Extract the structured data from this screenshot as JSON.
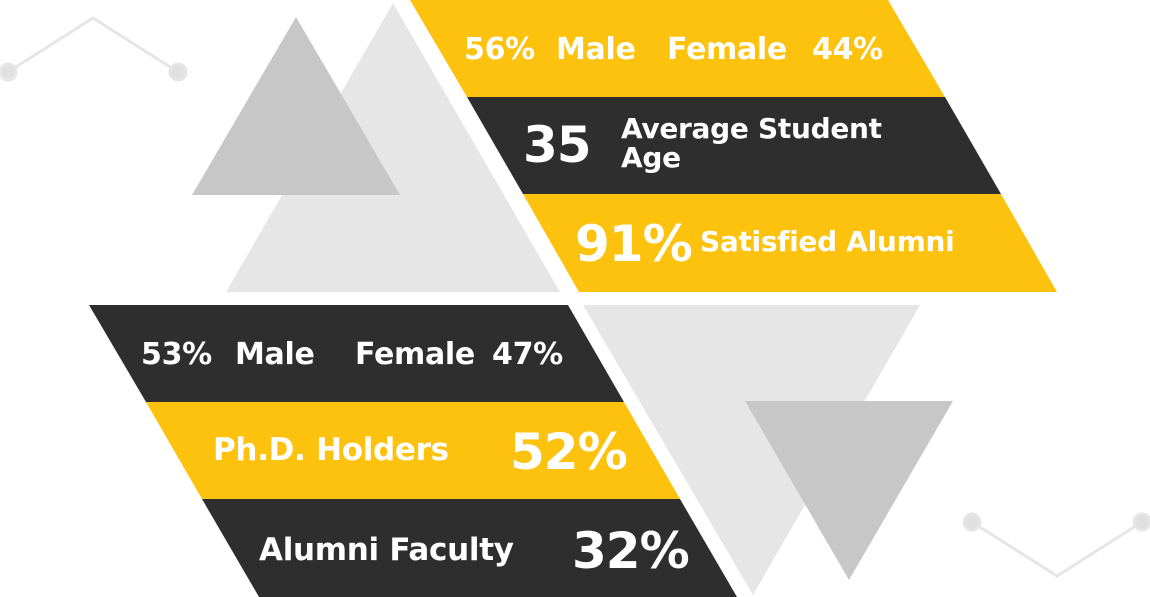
{
  "colors": {
    "yellow": "#FDC20E",
    "dark": "#2E2E2E",
    "triangle_light": "#E6E6E6",
    "triangle_mid": "#C7C7C7",
    "line_decor": "#E4E4E4"
  },
  "students": {
    "gender": {
      "male_pct": "56%",
      "male_label": "Male",
      "female_label": "Female",
      "female_pct": "44%"
    },
    "age": {
      "value": "35",
      "label_line1": "Average Student",
      "label_line2": "Age"
    },
    "alumni": {
      "value": "91%",
      "label": "Satisfied Alumni"
    }
  },
  "faculty": {
    "gender": {
      "male_pct": "53%",
      "male_label": "Male",
      "female_label": "Female",
      "female_pct": "47%"
    },
    "phd": {
      "label": "Ph.D. Holders",
      "value": "52%"
    },
    "alumni_faculty": {
      "label": "Alumni Faculty",
      "value": "32%"
    }
  }
}
